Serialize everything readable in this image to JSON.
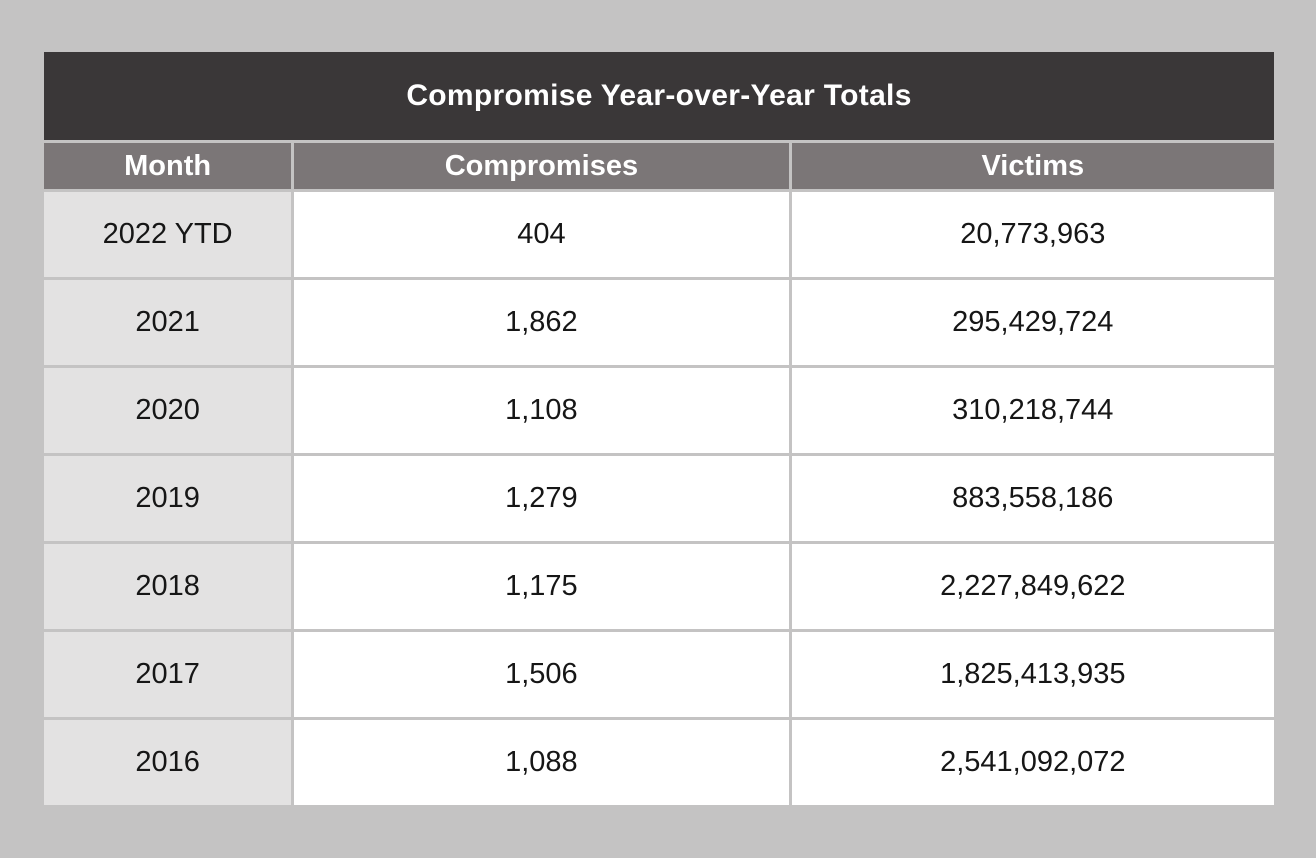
{
  "page": {
    "background_color": "#c4c3c3"
  },
  "table": {
    "title": "Compromise Year-over-Year Totals",
    "columns": [
      "Month",
      "Compromises",
      "Victims"
    ],
    "rows": [
      {
        "month": "2022 YTD",
        "compromises": "404",
        "victims": "20,773,963"
      },
      {
        "month": "2021",
        "compromises": "1,862",
        "victims": "295,429,724"
      },
      {
        "month": "2020",
        "compromises": "1,108",
        "victims": "310,218,744"
      },
      {
        "month": "2019",
        "compromises": "1,279",
        "victims": "883,558,186"
      },
      {
        "month": "2018",
        "compromises": "1,175",
        "victims": "2,227,849,622"
      },
      {
        "month": "2017",
        "compromises": "1,506",
        "victims": "1,825,413,935"
      },
      {
        "month": "2016",
        "compromises": "1,088",
        "victims": "2,541,092,072"
      }
    ],
    "colors": {
      "title_bg": "#3a3738",
      "header_bg": "#7b7677",
      "header_text": "#ffffff",
      "month_col_bg": "#e3e2e2",
      "cell_bg": "#ffffff",
      "cell_text": "#161616",
      "divider": "#c4c3c3"
    }
  },
  "chart_data": {
    "type": "table",
    "title": "Compromise Year-over-Year Totals",
    "columns": [
      "Month",
      "Compromises",
      "Victims"
    ],
    "rows": [
      [
        "2022 YTD",
        404,
        20773963
      ],
      [
        "2021",
        1862,
        295429724
      ],
      [
        "2020",
        1108,
        310218744
      ],
      [
        "2019",
        1279,
        883558186
      ],
      [
        "2018",
        1175,
        2227849622
      ],
      [
        "2017",
        1506,
        1825413935
      ],
      [
        "2016",
        1088,
        2541092072
      ]
    ]
  }
}
